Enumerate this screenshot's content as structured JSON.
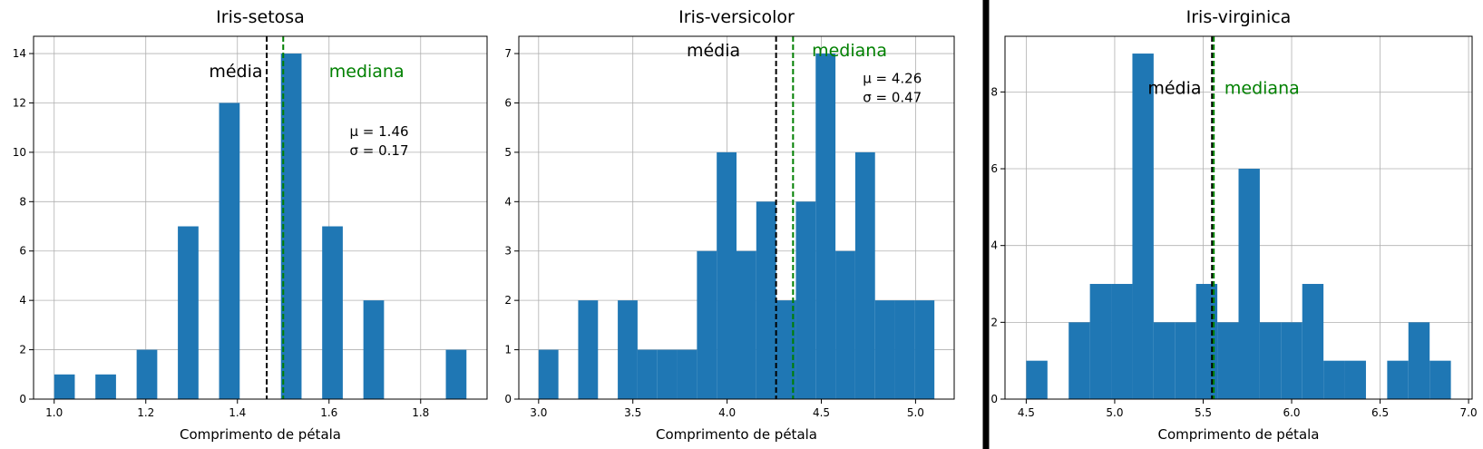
{
  "chart_data": [
    {
      "type": "bar",
      "title": "Iris-setosa",
      "xlabel": "Comprimento de pétala",
      "ylabel": "",
      "xlim": [
        0.955,
        1.945
      ],
      "ylim": [
        0,
        14.7
      ],
      "xticks": [
        1.0,
        1.2,
        1.4,
        1.6,
        1.8
      ],
      "xtick_labels": [
        "1.0",
        "1.2",
        "1.4",
        "1.6",
        "1.8"
      ],
      "yticks": [
        0,
        2,
        4,
        6,
        8,
        10,
        12,
        14
      ],
      "ytick_labels": [
        "0",
        "2",
        "4",
        "6",
        "8",
        "10",
        "12",
        "14"
      ],
      "grid": true,
      "bar_color": "#1f77b4",
      "bins": [
        {
          "x0": 1.0,
          "x1": 1.045,
          "count": 1
        },
        {
          "x0": 1.09,
          "x1": 1.135,
          "count": 1
        },
        {
          "x0": 1.18,
          "x1": 1.225,
          "count": 2
        },
        {
          "x0": 1.27,
          "x1": 1.315,
          "count": 7
        },
        {
          "x0": 1.36,
          "x1": 1.405,
          "count": 12
        },
        {
          "x0": 1.495,
          "x1": 1.54,
          "count": 14
        },
        {
          "x0": 1.585,
          "x1": 1.63,
          "count": 7
        },
        {
          "x0": 1.675,
          "x1": 1.72,
          "count": 4
        },
        {
          "x0": 1.855,
          "x1": 1.9,
          "count": 2
        }
      ],
      "mean": 1.464,
      "median": 1.5,
      "mean_label": "média",
      "median_label": "mediana",
      "mean_color": "#000000",
      "median_color": "#008000",
      "stats_lines": [
        "μ = 1.46",
        "σ = 0.17"
      ],
      "mean_label_pos": {
        "x": 1.455,
        "y": 13.05
      },
      "median_label_pos": {
        "x": 1.6,
        "y": 13.05
      },
      "stats_pos": {
        "x": 1.645,
        "y": 10.65
      }
    },
    {
      "type": "bar",
      "title": "Iris-versicolor",
      "xlabel": "Comprimento de pétala",
      "ylabel": "",
      "xlim": [
        2.895,
        5.205
      ],
      "ylim": [
        0,
        7.35
      ],
      "xticks": [
        3.0,
        3.5,
        4.0,
        4.5,
        5.0
      ],
      "xtick_labels": [
        "3.0",
        "3.5",
        "4.0",
        "4.5",
        "5.0"
      ],
      "yticks": [
        0,
        1,
        2,
        3,
        4,
        5,
        6,
        7
      ],
      "ytick_labels": [
        "0",
        "1",
        "2",
        "3",
        "4",
        "5",
        "6",
        "7"
      ],
      "grid": true,
      "bar_color": "#1f77b4",
      "bins": [
        {
          "x0": 3.0,
          "x1": 3.105,
          "count": 1
        },
        {
          "x0": 3.21,
          "x1": 3.315,
          "count": 2
        },
        {
          "x0": 3.42,
          "x1": 3.525,
          "count": 2
        },
        {
          "x0": 3.525,
          "x1": 3.63,
          "count": 1
        },
        {
          "x0": 3.63,
          "x1": 3.735,
          "count": 1
        },
        {
          "x0": 3.735,
          "x1": 3.84,
          "count": 1
        },
        {
          "x0": 3.84,
          "x1": 3.945,
          "count": 3
        },
        {
          "x0": 3.945,
          "x1": 4.05,
          "count": 5
        },
        {
          "x0": 4.05,
          "x1": 4.155,
          "count": 3
        },
        {
          "x0": 4.155,
          "x1": 4.26,
          "count": 4
        },
        {
          "x0": 4.26,
          "x1": 4.365,
          "count": 2
        },
        {
          "x0": 4.365,
          "x1": 4.47,
          "count": 4
        },
        {
          "x0": 4.47,
          "x1": 4.575,
          "count": 7
        },
        {
          "x0": 4.575,
          "x1": 4.68,
          "count": 3
        },
        {
          "x0": 4.68,
          "x1": 4.785,
          "count": 5
        },
        {
          "x0": 4.785,
          "x1": 4.89,
          "count": 2
        },
        {
          "x0": 4.89,
          "x1": 4.995,
          "count": 2
        },
        {
          "x0": 4.995,
          "x1": 5.1,
          "count": 2
        }
      ],
      "mean": 4.26,
      "median": 4.35,
      "mean_label": "média",
      "median_label": "mediana",
      "mean_color": "#000000",
      "median_color": "#008000",
      "stats_lines": [
        "μ = 4.26",
        "σ = 0.47"
      ],
      "mean_label_pos": {
        "x": 4.07,
        "y": 6.95
      },
      "median_label_pos": {
        "x": 4.45,
        "y": 6.95
      },
      "stats_pos": {
        "x": 4.72,
        "y": 6.4
      }
    },
    {
      "type": "bar",
      "title": "Iris-virginica",
      "xlabel": "Comprimento de pétala",
      "ylabel": "",
      "xlim": [
        4.38,
        7.02
      ],
      "ylim": [
        0,
        9.45
      ],
      "xticks": [
        4.5,
        5.0,
        5.5,
        6.0,
        6.5,
        7.0
      ],
      "xtick_labels": [
        "4.5",
        "5.0",
        "5.5",
        "6.0",
        "6.5",
        "7.0"
      ],
      "yticks": [
        0,
        2,
        4,
        6,
        8
      ],
      "ytick_labels": [
        "0",
        "2",
        "4",
        "6",
        "8"
      ],
      "grid": true,
      "bar_color": "#1f77b4",
      "bins": [
        {
          "x0": 4.5,
          "x1": 4.62,
          "count": 1
        },
        {
          "x0": 4.74,
          "x1": 4.86,
          "count": 2
        },
        {
          "x0": 4.86,
          "x1": 4.98,
          "count": 3
        },
        {
          "x0": 4.98,
          "x1": 5.1,
          "count": 3
        },
        {
          "x0": 5.1,
          "x1": 5.22,
          "count": 9
        },
        {
          "x0": 5.22,
          "x1": 5.34,
          "count": 2
        },
        {
          "x0": 5.34,
          "x1": 5.46,
          "count": 2
        },
        {
          "x0": 5.46,
          "x1": 5.58,
          "count": 3
        },
        {
          "x0": 5.58,
          "x1": 5.7,
          "count": 2
        },
        {
          "x0": 5.7,
          "x1": 5.82,
          "count": 6
        },
        {
          "x0": 5.82,
          "x1": 5.94,
          "count": 2
        },
        {
          "x0": 5.94,
          "x1": 6.06,
          "count": 2
        },
        {
          "x0": 6.06,
          "x1": 6.18,
          "count": 3
        },
        {
          "x0": 6.18,
          "x1": 6.3,
          "count": 1
        },
        {
          "x0": 6.3,
          "x1": 6.42,
          "count": 1
        },
        {
          "x0": 6.54,
          "x1": 6.66,
          "count": 1
        },
        {
          "x0": 6.66,
          "x1": 6.78,
          "count": 2
        },
        {
          "x0": 6.78,
          "x1": 6.9,
          "count": 1
        }
      ],
      "mean": 5.55,
      "median": 5.56,
      "mean_label": "média",
      "median_label": "mediana",
      "mean_color": "#000000",
      "median_color": "#008000",
      "stats_lines": [],
      "mean_label_pos": {
        "x": 5.49,
        "y": 7.95
      },
      "median_label_pos": {
        "x": 5.62,
        "y": 7.95
      },
      "stats_pos": null
    }
  ]
}
